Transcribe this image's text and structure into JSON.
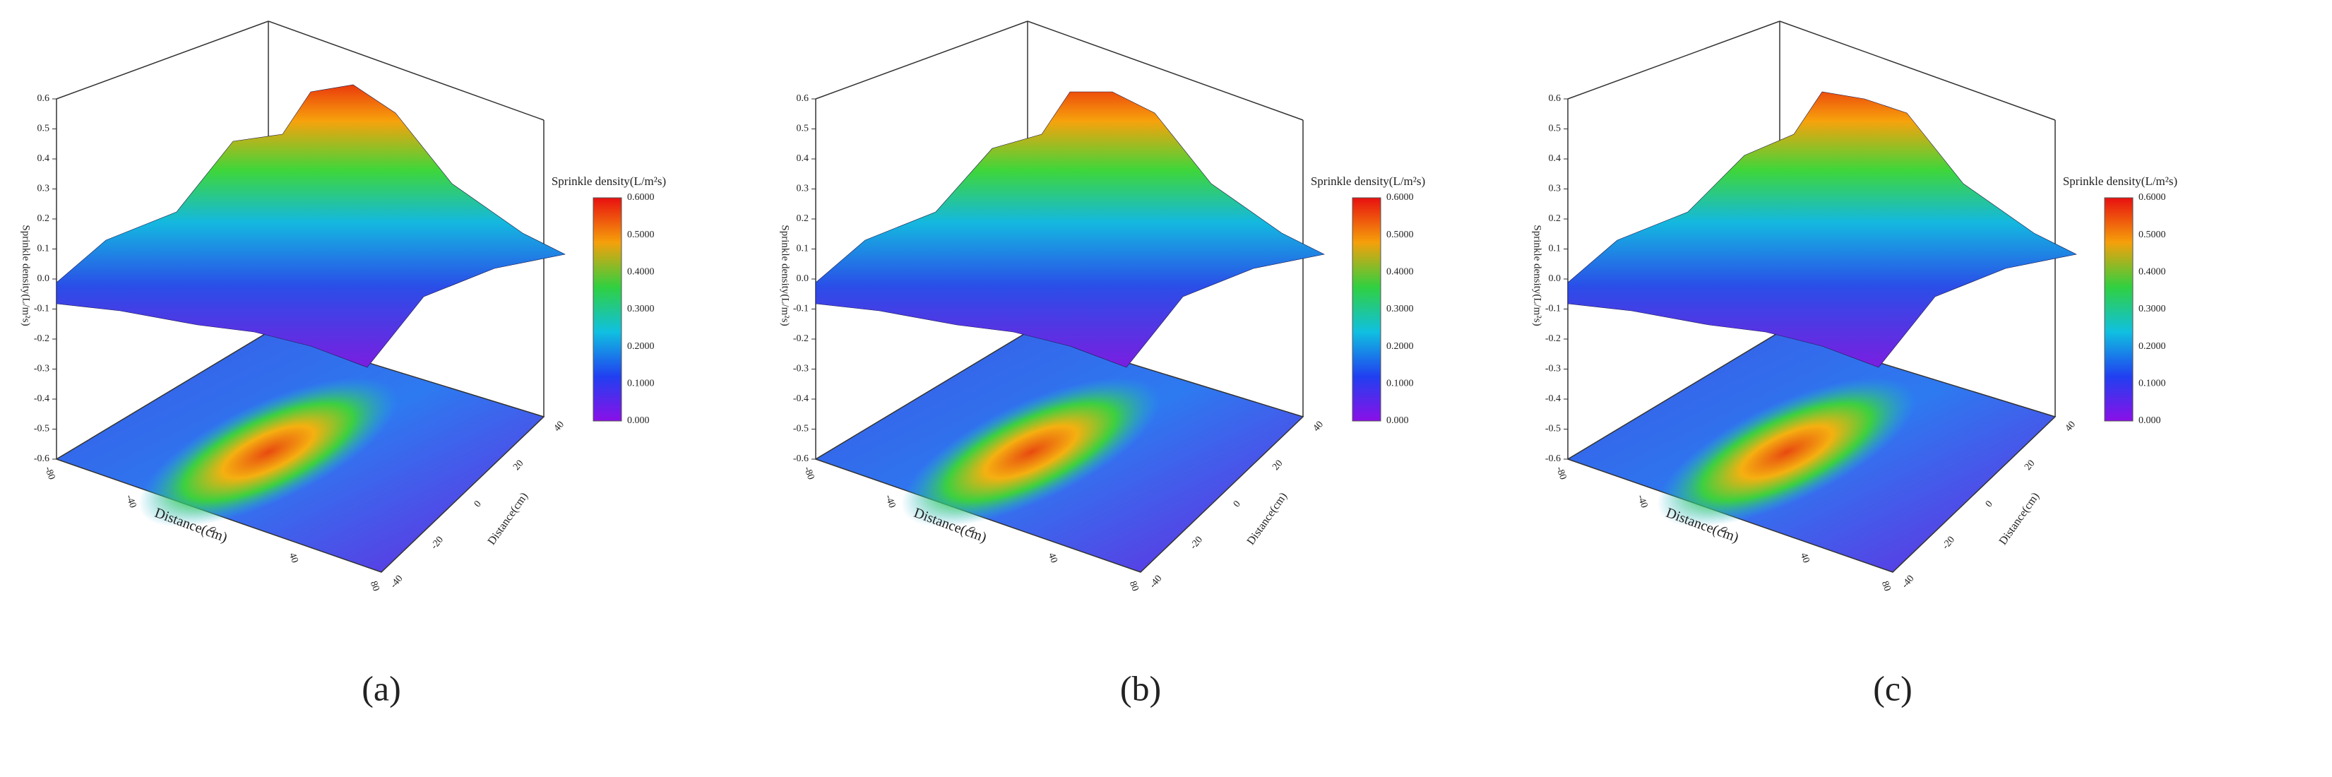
{
  "panels": [
    {
      "label": "(a)",
      "colorbar": {
        "title": "Sprinkle density(L/m²s)",
        "ticks": [
          "0.6000",
          "0.5000",
          "0.4000",
          "0.3000",
          "0.2000",
          "0.1000",
          "0.000"
        ]
      },
      "z_axis": {
        "label": "Sprinkle density(L/m²s)",
        "ticks": [
          "0.6",
          "0.5",
          "0.4",
          "0.3",
          "0.2",
          "0.1",
          "0.0",
          "-0.1",
          "-0.2",
          "-0.3",
          "-0.4",
          "-0.5",
          "-0.6"
        ]
      },
      "x_axis": {
        "label": "Distance(cm)",
        "ticks": [
          "-80",
          "-40",
          "0",
          "40",
          "80"
        ]
      },
      "y_axis": {
        "label": "Distance(cm)",
        "ticks": [
          "40",
          "20",
          "0",
          "-20",
          "-40"
        ]
      }
    },
    {
      "label": "(b)",
      "colorbar": {
        "title": "Sprinkle density(L/m²s)",
        "ticks": [
          "0.6000",
          "0.5000",
          "0.4000",
          "0.3000",
          "0.2000",
          "0.1000",
          "0.000"
        ]
      },
      "z_axis": {
        "label": "Sprinkle density(L/m²s)",
        "ticks": [
          "0.6",
          "0.5",
          "0.4",
          "0.3",
          "0.2",
          "0.1",
          "0.0",
          "-0.1",
          "-0.2",
          "-0.3",
          "-0.4",
          "-0.5",
          "-0.6"
        ]
      },
      "x_axis": {
        "label": "Distance(cm)",
        "ticks": [
          "-80",
          "-40",
          "0",
          "40",
          "80"
        ]
      },
      "y_axis": {
        "label": "Distance(cm)",
        "ticks": [
          "40",
          "20",
          "0",
          "-20",
          "-40"
        ]
      }
    },
    {
      "label": "(c)",
      "colorbar": {
        "title": "Sprinkle density(L/m²s)",
        "ticks": [
          "0.6000",
          "0.5000",
          "0.4000",
          "0.3000",
          "0.2000",
          "0.1000",
          "0.000"
        ]
      },
      "z_axis": {
        "label": "Sprinkle density(L/m²s)",
        "ticks": [
          "0.6",
          "0.5",
          "0.4",
          "0.3",
          "0.2",
          "0.1",
          "0.0",
          "-0.1",
          "-0.2",
          "-0.3",
          "-0.4",
          "-0.5",
          "-0.6"
        ]
      },
      "x_axis": {
        "label": "Distance(cm)",
        "ticks": [
          "-80",
          "-40",
          "0",
          "40",
          "80"
        ]
      },
      "y_axis": {
        "label": "Distance(cm)",
        "ticks": [
          "40",
          "20",
          "0",
          "-20",
          "-40"
        ]
      }
    }
  ]
}
